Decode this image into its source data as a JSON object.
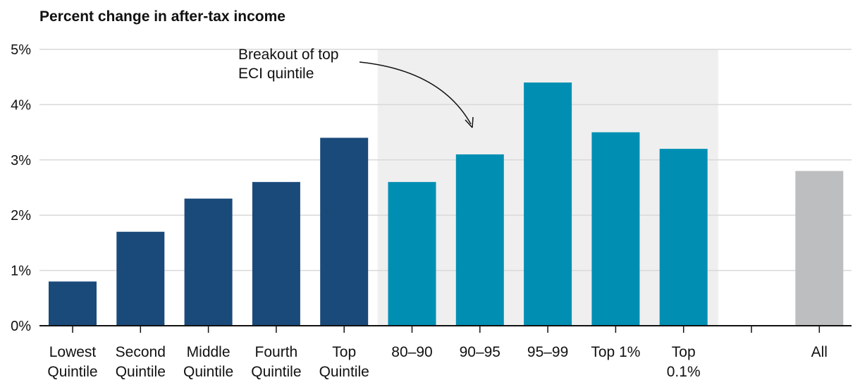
{
  "chart_data": {
    "type": "bar",
    "title": "Percent change in after-tax income",
    "xlabel": "",
    "ylabel": "",
    "ylim": [
      0,
      5
    ],
    "yticks": [
      "0%",
      "1%",
      "2%",
      "3%",
      "4%",
      "5%"
    ],
    "grid": true,
    "categories": [
      [
        "Lowest",
        "Quintile"
      ],
      [
        "Second",
        "Quintile"
      ],
      [
        "Middle",
        "Quintile"
      ],
      [
        "Fourth",
        "Quintile"
      ],
      [
        "Top",
        "Quintile"
      ],
      [
        "80–90"
      ],
      [
        "90–95"
      ],
      [
        "95–99"
      ],
      [
        "Top 1%"
      ],
      [
        "Top",
        "0.1%"
      ],
      [
        ""
      ],
      [
        "All"
      ]
    ],
    "values": [
      0.8,
      1.7,
      2.3,
      2.6,
      3.4,
      2.6,
      3.1,
      4.4,
      3.5,
      3.2,
      null,
      2.8
    ],
    "groups": [
      "quintile",
      "quintile",
      "quintile",
      "quintile",
      "quintile",
      "breakout",
      "breakout",
      "breakout",
      "breakout",
      "breakout",
      "none",
      "all"
    ],
    "colors": {
      "quintile": "#1a4a7a",
      "breakout": "#008fb3",
      "all": "#bdbec0",
      "highlight_band": "#efefef",
      "grid": "#d9d9d9"
    },
    "annotation": {
      "lines": [
        "Breakout of top",
        "ECI quintile"
      ]
    }
  }
}
